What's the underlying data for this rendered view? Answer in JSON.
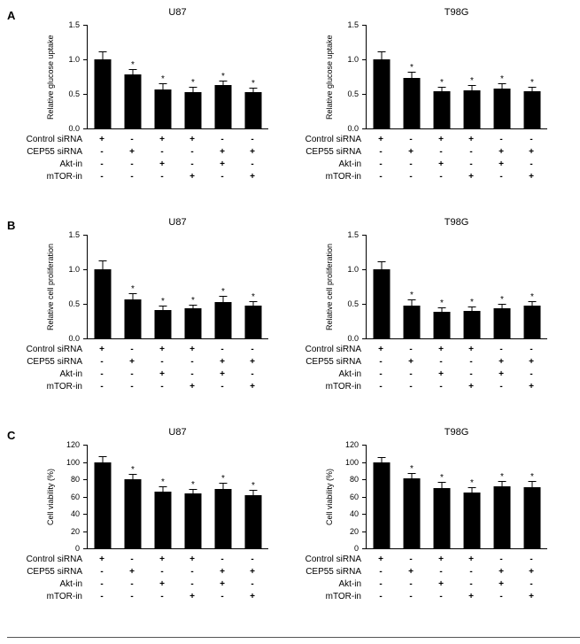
{
  "figure": {
    "panels": [
      {
        "label": "A"
      },
      {
        "label": "B"
      },
      {
        "label": "C"
      }
    ]
  },
  "treatment_rows": [
    "Control siRNA",
    "CEP55 siRNA",
    "Akt-in",
    "mTOR-in"
  ],
  "treatment_matrix": [
    [
      "+",
      "-",
      "+",
      "+",
      "-",
      "-"
    ],
    [
      "-",
      "+",
      "-",
      "-",
      "+",
      "+"
    ],
    [
      "-",
      "-",
      "+",
      "-",
      "+",
      "-"
    ],
    [
      "-",
      "-",
      "-",
      "+",
      "-",
      "+"
    ]
  ],
  "colors": {
    "bar": "#000000",
    "axis": "#000000",
    "background": "#ffffff"
  },
  "chart_data": [
    {
      "panel": "A",
      "type": "bar",
      "title": "U87",
      "ylabel": "Relative glucose uptake",
      "ylim": [
        0,
        1.5
      ],
      "yticks": [
        0,
        0.5,
        1.0,
        1.5
      ],
      "ytick_labels": [
        "0.0",
        "0.5",
        "1.0",
        "1.5"
      ],
      "values": [
        1.0,
        0.78,
        0.57,
        0.52,
        0.63,
        0.53
      ],
      "errors": [
        0.1,
        0.07,
        0.07,
        0.07,
        0.05,
        0.05
      ],
      "sig": [
        "",
        "*",
        "*",
        "*",
        "*",
        "*"
      ],
      "grid": false,
      "legend": "none"
    },
    {
      "panel": "A",
      "type": "bar",
      "title": "T98G",
      "ylabel": "Relative glucose uptake",
      "ylim": [
        0,
        1.5
      ],
      "yticks": [
        0,
        0.5,
        1.0,
        1.5
      ],
      "ytick_labels": [
        "0.0",
        "0.5",
        "1.0",
        "1.5"
      ],
      "values": [
        1.0,
        0.73,
        0.54,
        0.55,
        0.58,
        0.54
      ],
      "errors": [
        0.1,
        0.08,
        0.05,
        0.06,
        0.06,
        0.05
      ],
      "sig": [
        "",
        "*",
        "*",
        "*",
        "*",
        "*"
      ],
      "grid": false,
      "legend": "none"
    },
    {
      "panel": "B",
      "type": "bar",
      "title": "U87",
      "ylabel": "Relative cell proliferation",
      "ylim": [
        0,
        1.5
      ],
      "yticks": [
        0,
        0.5,
        1.0,
        1.5
      ],
      "ytick_labels": [
        "0.0",
        "0.5",
        "1.0",
        "1.5"
      ],
      "values": [
        1.0,
        0.57,
        0.41,
        0.43,
        0.52,
        0.48
      ],
      "errors": [
        0.12,
        0.07,
        0.05,
        0.05,
        0.08,
        0.05
      ],
      "sig": [
        "",
        "*",
        "*",
        "*",
        "*",
        "*"
      ],
      "grid": false,
      "legend": "none"
    },
    {
      "panel": "B",
      "type": "bar",
      "title": "T98G",
      "ylabel": "Relative cell proliferation",
      "ylim": [
        0,
        1.5
      ],
      "yticks": [
        0,
        0.5,
        1.0,
        1.5
      ],
      "ytick_labels": [
        "0.0",
        "0.5",
        "1.0",
        "1.5"
      ],
      "values": [
        1.0,
        0.48,
        0.39,
        0.4,
        0.44,
        0.47
      ],
      "errors": [
        0.1,
        0.07,
        0.05,
        0.05,
        0.05,
        0.06
      ],
      "sig": [
        "",
        "*",
        "*",
        "*",
        "*",
        "*"
      ],
      "grid": false,
      "legend": "none"
    },
    {
      "panel": "C",
      "type": "bar",
      "title": "U87",
      "ylabel": "Cell viability (%)",
      "ylim": [
        0,
        120
      ],
      "yticks": [
        0,
        20,
        40,
        60,
        80,
        100,
        120
      ],
      "ytick_labels": [
        "0",
        "20",
        "40",
        "60",
        "80",
        "100",
        "120"
      ],
      "values": [
        100,
        80,
        66,
        64,
        69,
        62
      ],
      "errors": [
        6,
        5,
        5,
        4,
        6,
        5
      ],
      "sig": [
        "",
        "*",
        "*",
        "*",
        "*",
        "*"
      ],
      "grid": false,
      "legend": "none"
    },
    {
      "panel": "C",
      "type": "bar",
      "title": "T98G",
      "ylabel": "Cell viability (%)",
      "ylim": [
        0,
        120
      ],
      "yticks": [
        0,
        20,
        40,
        60,
        80,
        100,
        120
      ],
      "ytick_labels": [
        "0",
        "20",
        "40",
        "60",
        "80",
        "100",
        "120"
      ],
      "values": [
        100,
        81,
        70,
        65,
        72,
        71
      ],
      "errors": [
        5,
        5,
        6,
        5,
        5,
        6
      ],
      "sig": [
        "",
        "*",
        "*",
        "*",
        "*",
        "*"
      ],
      "grid": false,
      "legend": "none"
    }
  ]
}
